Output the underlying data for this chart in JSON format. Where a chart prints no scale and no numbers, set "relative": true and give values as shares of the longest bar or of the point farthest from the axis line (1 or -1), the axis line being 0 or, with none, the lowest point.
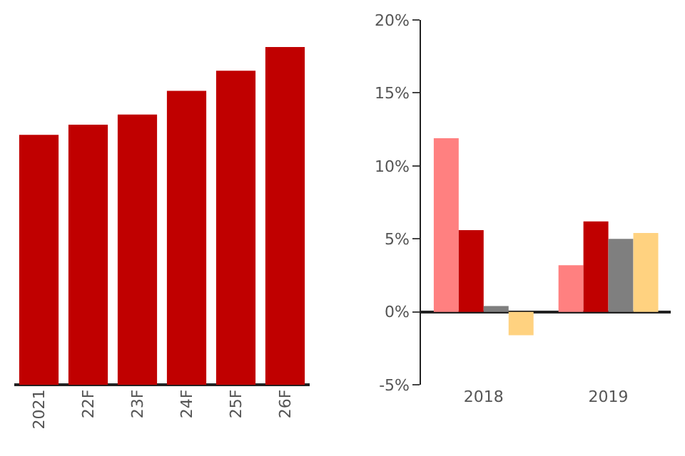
{
  "chart_data": [
    {
      "type": "bar",
      "relative": true,
      "categories": [
        "2021",
        "22F",
        "23F",
        "24F",
        "25F",
        "26F"
      ],
      "values": [
        0.74,
        0.77,
        0.8,
        0.87,
        0.93,
        1.0
      ],
      "color": "#c00000",
      "tick_labels": "x"
    },
    {
      "type": "bar",
      "categories": [
        "2018",
        "2019"
      ],
      "series": [
        {
          "color": "#ff8080",
          "values": [
            11.9,
            3.2
          ]
        },
        {
          "color": "#c00000",
          "values": [
            5.6,
            6.2
          ]
        },
        {
          "color": "#7f7f7f",
          "values": [
            0.4,
            5.0
          ]
        },
        {
          "color": "#ffd280",
          "values": [
            -1.6,
            5.4
          ]
        }
      ],
      "ylim": [
        -5,
        20
      ],
      "yticks": [
        {
          "value": -5,
          "label": "-5%"
        },
        {
          "value": 0,
          "label": "0%"
        },
        {
          "value": 5,
          "label": "5%"
        },
        {
          "value": 10,
          "label": "10%"
        },
        {
          "value": 15,
          "label": "15%"
        },
        {
          "value": 20,
          "label": "20%"
        }
      ]
    }
  ]
}
